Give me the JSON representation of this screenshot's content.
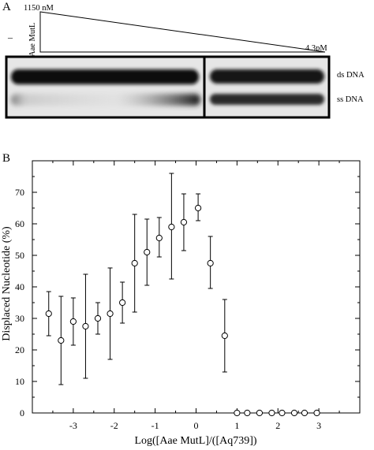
{
  "panel_a": {
    "letter": "A",
    "top_conc_label": "1150 nM",
    "bottom_conc_label": "4.3pM",
    "minus_label": "–",
    "lane_label": "Aae MutL",
    "band_labels": [
      "ds DNA",
      "ss DNA"
    ]
  },
  "panel_b": {
    "letter": "B"
  },
  "chart_data": {
    "type": "scatter",
    "title": "",
    "xlabel": "Log([Aae MutL]/([Aq739])",
    "ylabel": "Displaced Nucleotide (%)",
    "xlim": [
      -4,
      4
    ],
    "ylim": [
      0,
      80
    ],
    "xticks": [
      -3,
      -2,
      -1,
      0,
      1,
      2,
      3
    ],
    "yticks": [
      0,
      10,
      20,
      30,
      40,
      50,
      60,
      70
    ],
    "grid": false,
    "legend": "none",
    "marker": "open-circle",
    "series": [
      {
        "x": [
          -3.6,
          -3.3,
          -3.0,
          -2.7,
          -2.4,
          -2.1,
          -1.8,
          -1.5,
          -1.2,
          -0.9,
          -0.6,
          -0.3,
          0.05,
          0.35,
          0.7,
          1.0,
          1.25,
          1.55,
          1.85,
          2.1,
          2.4,
          2.65,
          2.95
        ],
        "y": [
          31.5,
          23,
          29,
          27.5,
          30,
          31.5,
          35,
          47.5,
          51,
          55.5,
          59,
          60.5,
          65,
          47.5,
          24.5,
          0,
          0,
          0,
          0,
          0,
          0,
          0,
          0
        ],
        "err_low": [
          24.5,
          9,
          21.5,
          11,
          25,
          17,
          28.5,
          32,
          40.5,
          49.5,
          42.5,
          51.5,
          61,
          39.5,
          13,
          0,
          0,
          0,
          0,
          0,
          0,
          0,
          0
        ],
        "err_high": [
          38.5,
          37,
          36.5,
          44,
          35,
          46,
          41.5,
          63,
          61.5,
          62,
          76,
          69.5,
          69.5,
          56,
          36,
          0,
          0,
          0,
          0,
          0,
          0,
          0,
          0
        ]
      }
    ]
  }
}
